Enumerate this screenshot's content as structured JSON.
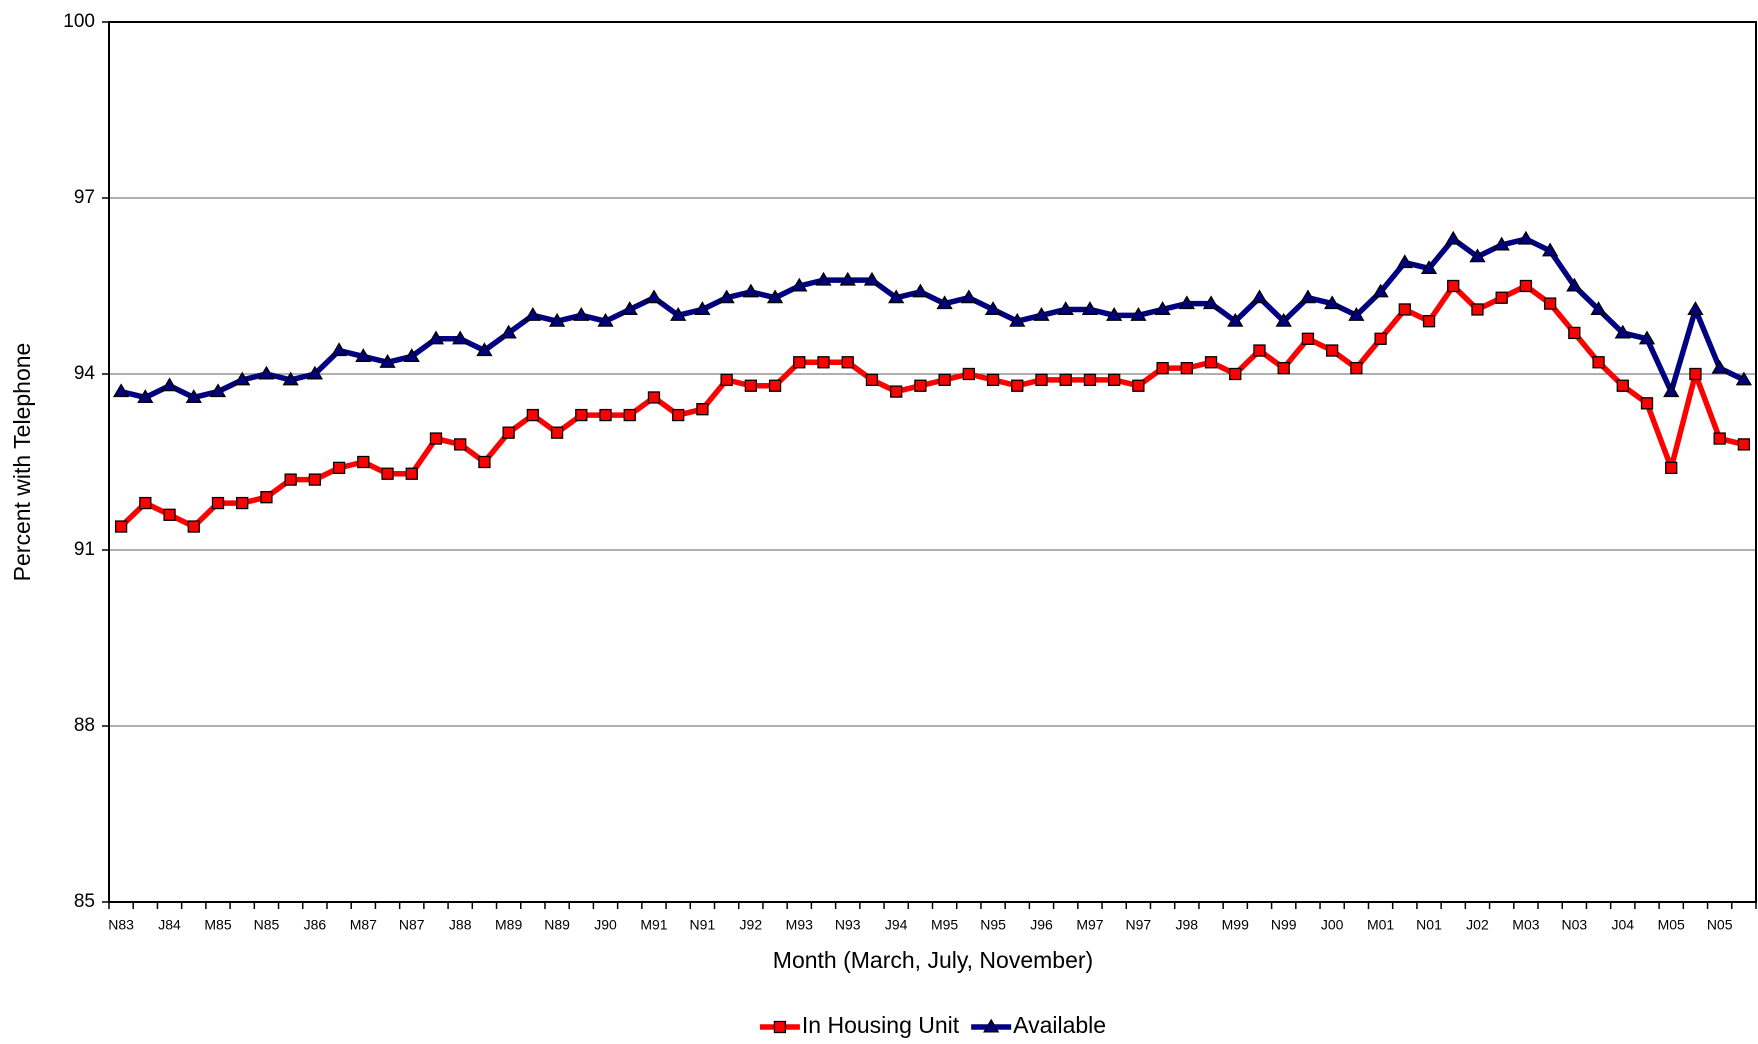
{
  "chart_data": {
    "type": "line",
    "x_label": "Month (March, July, November)",
    "y_label": "Percent with Telephone",
    "categories": [
      "N83",
      null,
      "J84",
      null,
      "M85",
      null,
      "N85",
      null,
      "J86",
      null,
      "M87",
      null,
      "N87",
      null,
      "J88",
      null,
      "M89",
      null,
      "N89",
      null,
      "J90",
      null,
      "M91",
      null,
      "N91",
      null,
      "J92",
      null,
      "M93",
      null,
      "N93",
      null,
      "J94",
      null,
      "M95",
      null,
      "N95",
      null,
      "J96",
      null,
      "M97",
      null,
      "N97",
      null,
      "J98",
      null,
      "M99",
      null,
      "N99",
      null,
      "J00",
      null,
      "M01",
      null,
      "N01",
      null,
      "J02",
      null,
      "M03",
      null,
      "N03",
      null,
      "J04",
      null,
      "M05",
      null,
      "N05",
      null
    ],
    "series": [
      {
        "name": "In Housing Unit",
        "color": "#ff0000",
        "marker": "square",
        "values": [
          91.4,
          91.8,
          91.6,
          91.4,
          91.8,
          91.8,
          91.9,
          92.2,
          92.2,
          92.4,
          92.5,
          92.3,
          92.3,
          92.9,
          92.8,
          92.5,
          93.0,
          93.3,
          93.0,
          93.3,
          93.3,
          93.3,
          93.6,
          93.3,
          93.4,
          93.9,
          93.8,
          93.8,
          94.2,
          94.2,
          94.2,
          93.9,
          93.7,
          93.8,
          93.9,
          94.0,
          93.9,
          93.8,
          93.9,
          93.9,
          93.9,
          93.9,
          93.8,
          94.1,
          94.1,
          94.2,
          94.0,
          94.4,
          94.1,
          94.6,
          94.4,
          94.1,
          94.6,
          95.1,
          94.9,
          95.5,
          95.1,
          95.3,
          95.5,
          95.2,
          94.7,
          94.2,
          93.8,
          93.5,
          92.4,
          94.0,
          92.9,
          92.8
        ]
      },
      {
        "name": "Available",
        "color": "#000080",
        "marker": "triangle",
        "values": [
          93.7,
          93.6,
          93.8,
          93.6,
          93.7,
          93.9,
          94.0,
          93.9,
          94.0,
          94.4,
          94.3,
          94.2,
          94.3,
          94.6,
          94.6,
          94.4,
          94.7,
          95.0,
          94.9,
          95.0,
          94.9,
          95.1,
          95.3,
          95.0,
          95.1,
          95.3,
          95.4,
          95.3,
          95.5,
          95.6,
          95.6,
          95.6,
          95.3,
          95.4,
          95.2,
          95.3,
          95.1,
          94.9,
          95.0,
          95.1,
          95.1,
          95.0,
          95.0,
          95.1,
          95.2,
          95.2,
          94.9,
          95.3,
          94.9,
          95.3,
          95.2,
          95.0,
          95.4,
          95.9,
          95.8,
          96.3,
          96.0,
          96.2,
          96.3,
          96.1,
          95.5,
          95.1,
          94.7,
          94.6,
          93.7,
          95.1,
          94.1,
          93.9
        ]
      }
    ],
    "ylim": [
      85,
      100
    ],
    "yticks": [
      85,
      88,
      91,
      94,
      97,
      100
    ],
    "grid": true,
    "legend": "bottom"
  }
}
